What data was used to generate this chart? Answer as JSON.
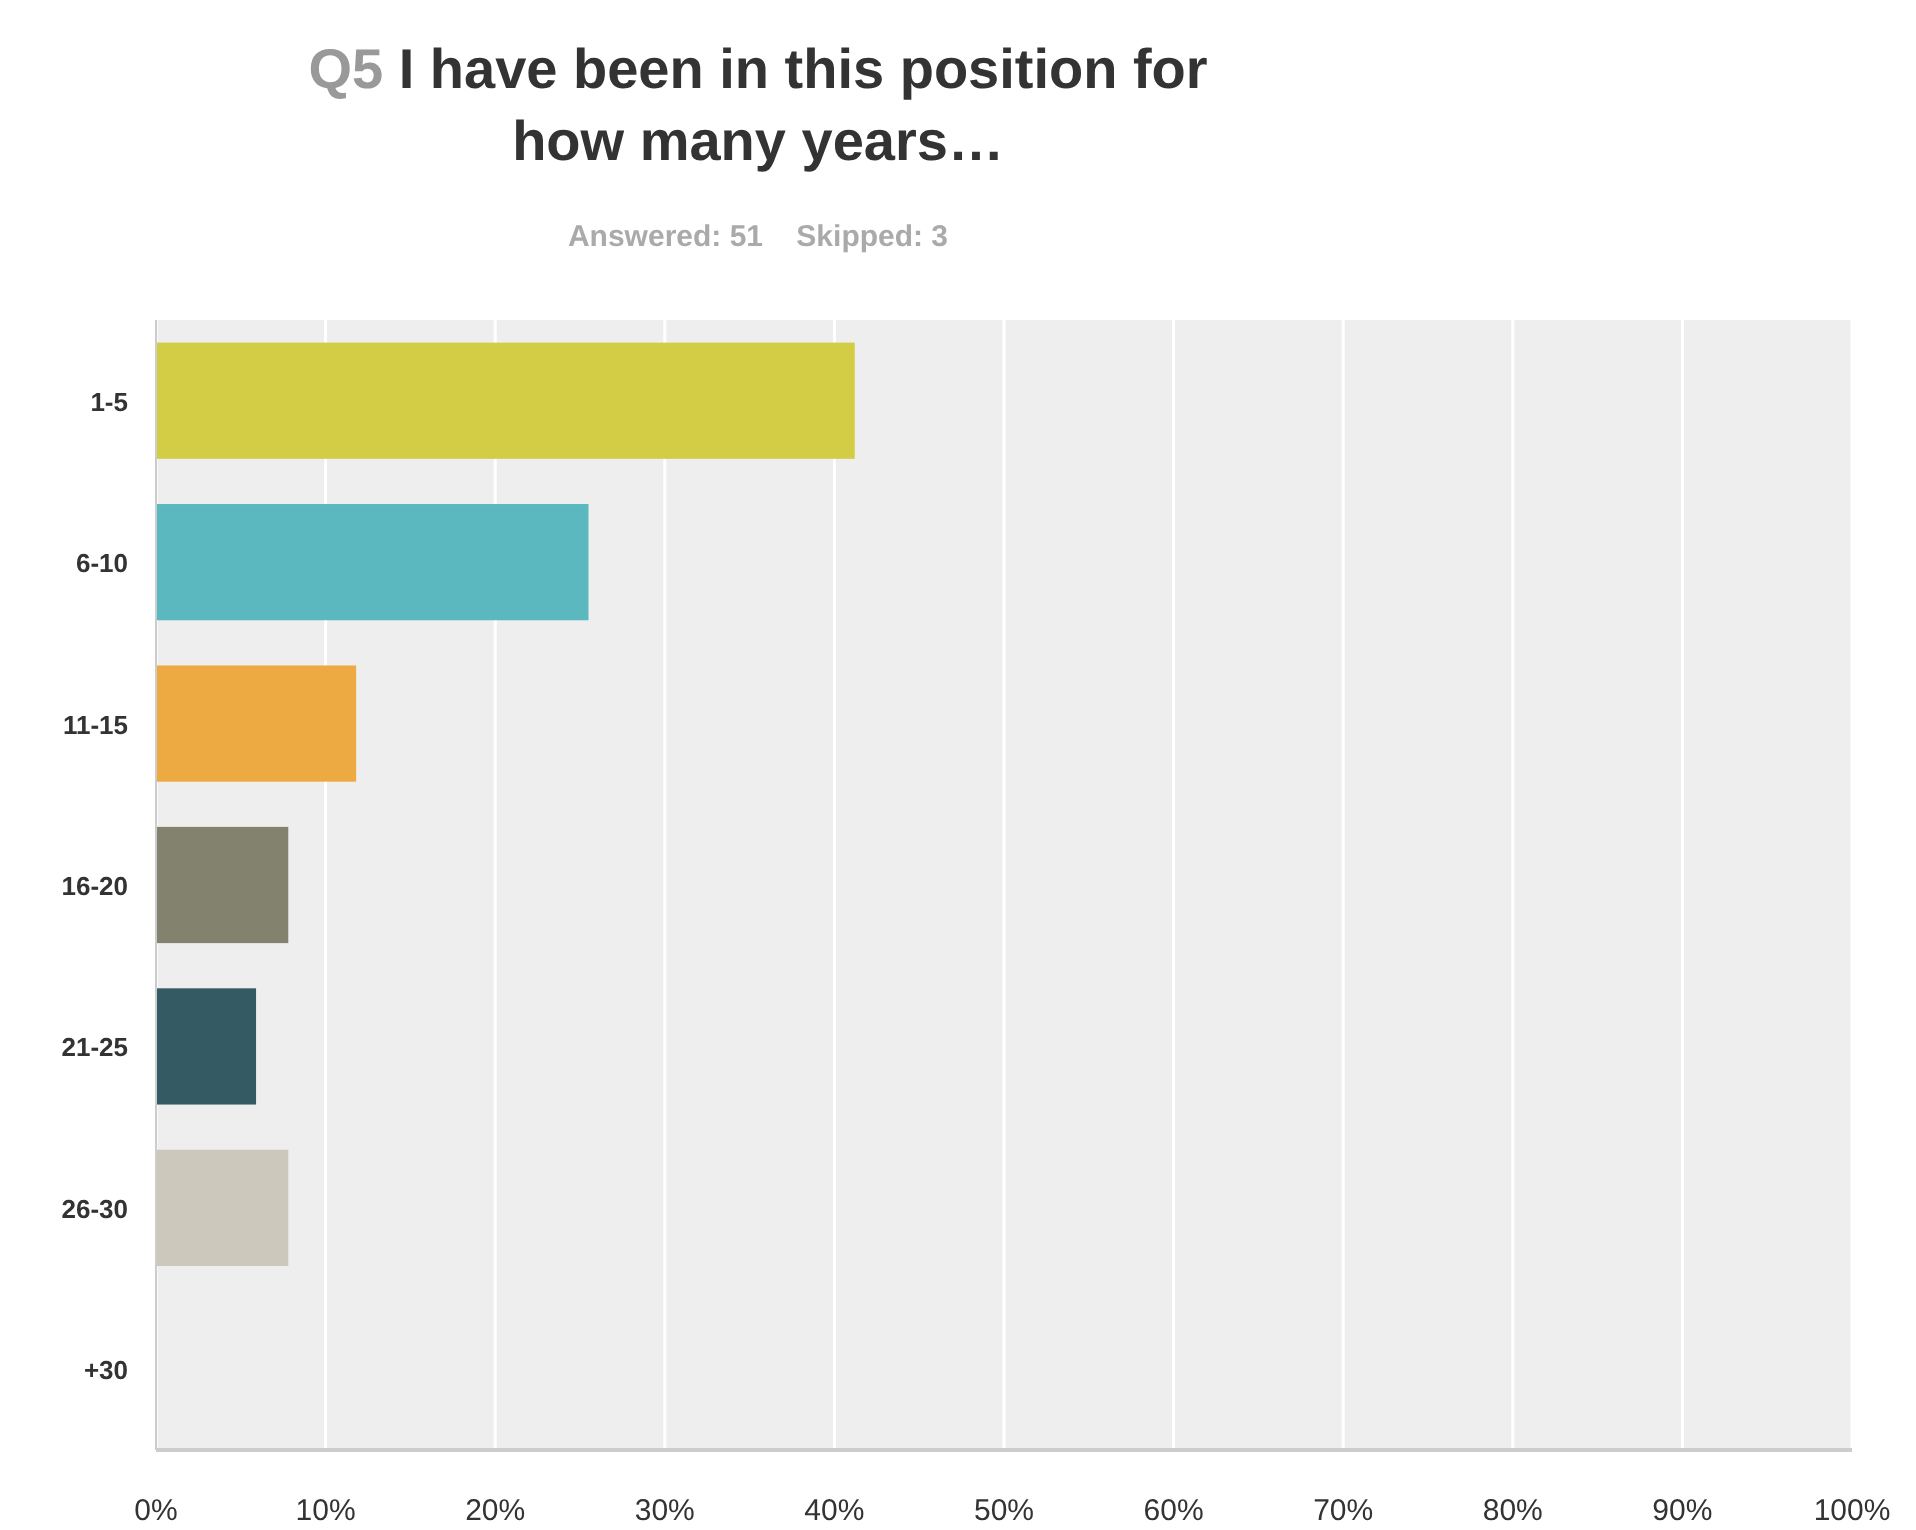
{
  "chart_data": {
    "type": "bar",
    "orientation": "horizontal",
    "title": "Q5 I have been in this position for how many years…",
    "subtitle": "Answered: 51    Skipped: 3",
    "categories": [
      "1-5",
      "6-10",
      "11-15",
      "16-20",
      "21-25",
      "26-30",
      "+30"
    ],
    "values": [
      41.2,
      25.5,
      11.8,
      7.8,
      5.9,
      7.8,
      0
    ],
    "colors": [
      "#d3cc45",
      "#5bb8bf",
      "#eeaa42",
      "#82826f",
      "#345b63",
      "#ccc8bc",
      null
    ],
    "xlim": [
      0,
      100
    ],
    "xticks": [
      {
        "value": 0,
        "label": "0%"
      },
      {
        "value": 10,
        "label": "10%"
      },
      {
        "value": 20,
        "label": "20%"
      },
      {
        "value": 30,
        "label": "30%"
      },
      {
        "value": 40,
        "label": "40%"
      },
      {
        "value": 50,
        "label": "50%"
      },
      {
        "value": 60,
        "label": "60%"
      },
      {
        "value": 70,
        "label": "70%"
      },
      {
        "value": 80,
        "label": "80%"
      },
      {
        "value": 90,
        "label": "90%"
      },
      {
        "value": 100,
        "label": "100%"
      }
    ],
    "grid": "x"
  }
}
